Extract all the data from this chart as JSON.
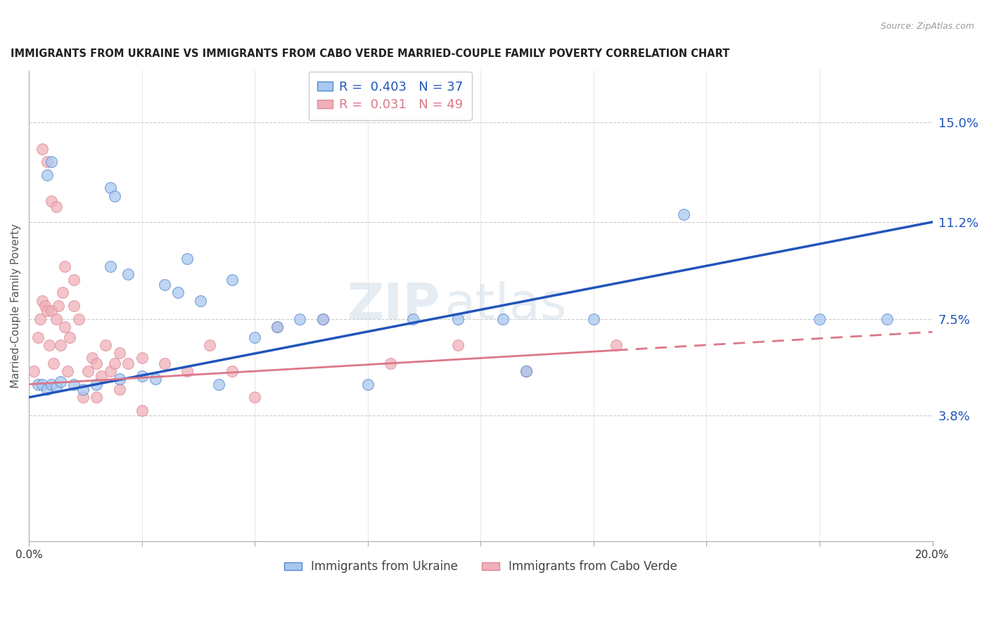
{
  "title": "IMMIGRANTS FROM UKRAINE VS IMMIGRANTS FROM CABO VERDE MARRIED-COUPLE FAMILY POVERTY CORRELATION CHART",
  "source": "Source: ZipAtlas.com",
  "ylabel": "Married-Couple Family Poverty",
  "ytick_values": [
    3.8,
    7.5,
    11.2,
    15.0
  ],
  "xlim": [
    0.0,
    20.0
  ],
  "ylim": [
    -1.0,
    17.0
  ],
  "legend_label_ukraine": "Immigrants from Ukraine",
  "legend_label_caboverde": "Immigrants from Cabo Verde",
  "R_ukraine": 0.403,
  "N_ukraine": 37,
  "R_caboverde": 0.031,
  "N_caboverde": 49,
  "color_ukraine_fill": "#a8c8f0",
  "color_ukraine_edge": "#5588cc",
  "color_caboverde_fill": "#f0b0b8",
  "color_caboverde_edge": "#dd8898",
  "color_line_ukraine": "#2255bb",
  "color_line_caboverde": "#dd7788",
  "ukraine_x": [
    0.2,
    0.3,
    0.4,
    0.5,
    0.6,
    0.7,
    1.0,
    1.2,
    1.5,
    1.8,
    2.0,
    2.2,
    2.5,
    2.8,
    3.0,
    3.3,
    3.5,
    3.8,
    4.2,
    4.5,
    5.0,
    5.5,
    6.0,
    6.5,
    7.5,
    8.5,
    9.5,
    10.5,
    11.0,
    12.5,
    14.5,
    17.5,
    19.0,
    0.4,
    0.5,
    1.8,
    1.9
  ],
  "ukraine_y": [
    5.0,
    5.0,
    4.8,
    5.0,
    4.9,
    5.1,
    5.0,
    4.8,
    5.0,
    9.5,
    5.2,
    9.2,
    5.3,
    5.2,
    8.8,
    8.5,
    9.8,
    8.2,
    5.0,
    9.0,
    6.8,
    7.2,
    7.5,
    7.5,
    5.0,
    7.5,
    7.5,
    7.5,
    5.5,
    7.5,
    11.5,
    7.5,
    7.5,
    13.0,
    13.5,
    12.5,
    12.2
  ],
  "caboverde_x": [
    0.1,
    0.2,
    0.25,
    0.3,
    0.35,
    0.4,
    0.45,
    0.5,
    0.55,
    0.6,
    0.65,
    0.7,
    0.75,
    0.8,
    0.85,
    0.9,
    1.0,
    1.1,
    1.2,
    1.3,
    1.4,
    1.5,
    1.6,
    1.7,
    1.8,
    1.9,
    2.0,
    2.2,
    2.5,
    3.0,
    3.5,
    4.0,
    4.5,
    5.5,
    6.5,
    8.0,
    9.5,
    11.0,
    13.0,
    0.3,
    0.4,
    0.5,
    0.6,
    0.8,
    1.0,
    1.5,
    2.0,
    2.5,
    5.0
  ],
  "caboverde_y": [
    5.5,
    6.8,
    7.5,
    8.2,
    8.0,
    7.8,
    6.5,
    7.8,
    5.8,
    7.5,
    8.0,
    6.5,
    8.5,
    7.2,
    5.5,
    6.8,
    8.0,
    7.5,
    4.5,
    5.5,
    6.0,
    5.8,
    5.3,
    6.5,
    5.5,
    5.8,
    6.2,
    5.8,
    6.0,
    5.8,
    5.5,
    6.5,
    5.5,
    7.2,
    7.5,
    5.8,
    6.5,
    5.5,
    6.5,
    14.0,
    13.5,
    12.0,
    11.8,
    9.5,
    9.0,
    4.5,
    4.8,
    4.0,
    4.5
  ]
}
